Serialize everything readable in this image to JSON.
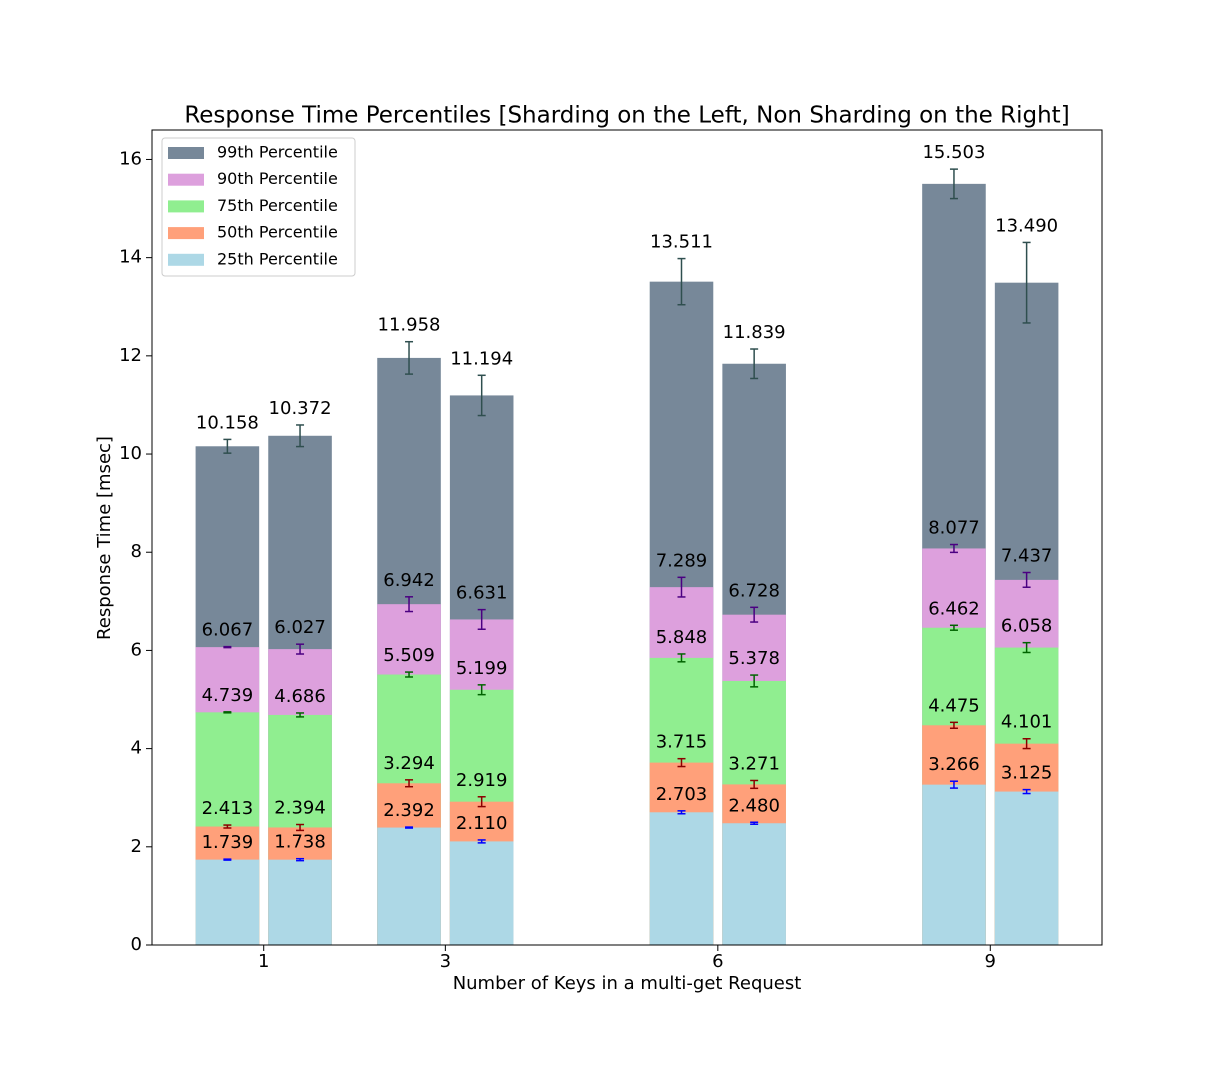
{
  "chart_data": {
    "type": "bar",
    "title": "Response Time Percentiles [Sharding on the Left, Non Sharding on the Right]",
    "x_label": "Number of Keys in a multi-get Request",
    "y_label": "Response Time [msec]",
    "x": [
      1,
      3,
      6,
      9
    ],
    "xticks": [
      1,
      3,
      6,
      9
    ],
    "xlim": [
      -0.23,
      10.23
    ],
    "ylim": [
      0,
      16.6
    ],
    "yticks": [
      0,
      2,
      4,
      6,
      8,
      10,
      12,
      14,
      16
    ],
    "legend": "upper left",
    "series": [
      {
        "name": "99th Percentile",
        "color": "#778899",
        "error_color": "#2f4f4f",
        "sharding": {
          "values": [
            10.158,
            11.958,
            13.511,
            15.503
          ],
          "value_labels": [
            "10.158",
            "11.958",
            "13.511",
            "15.503"
          ],
          "errors": [
            0.14,
            0.33,
            0.47,
            0.3
          ]
        },
        "non_sharding": {
          "values": [
            10.372,
            11.194,
            11.839,
            13.49
          ],
          "value_labels": [
            "10.372",
            "11.194",
            "11.839",
            "13.490"
          ],
          "errors": [
            0.22,
            0.41,
            0.3,
            0.82
          ]
        }
      },
      {
        "name": "90th Percentile",
        "color": "#dda0dd",
        "error_color": "#4b0082",
        "sharding": {
          "values": [
            6.067,
            6.942,
            7.289,
            8.077
          ],
          "value_labels": [
            "6.067",
            "6.942",
            "7.289",
            "8.077"
          ],
          "errors": [
            0.01,
            0.15,
            0.2,
            0.08
          ]
        },
        "non_sharding": {
          "values": [
            6.027,
            6.631,
            6.728,
            7.437
          ],
          "value_labels": [
            "6.027",
            "6.631",
            "6.728",
            "7.437"
          ],
          "errors": [
            0.1,
            0.2,
            0.15,
            0.15
          ]
        }
      },
      {
        "name": "75th Percentile",
        "color": "#90ee90",
        "error_color": "#006400",
        "sharding": {
          "values": [
            4.739,
            5.509,
            5.848,
            6.462
          ],
          "value_labels": [
            "4.739",
            "5.509",
            "5.848",
            "6.462"
          ],
          "errors": [
            0.01,
            0.05,
            0.08,
            0.05
          ]
        },
        "non_sharding": {
          "values": [
            4.686,
            5.199,
            5.378,
            6.058
          ],
          "value_labels": [
            "4.686",
            "5.199",
            "5.378",
            "6.058"
          ],
          "errors": [
            0.04,
            0.1,
            0.12,
            0.1
          ]
        }
      },
      {
        "name": "50th Percentile",
        "color": "#ffa07a",
        "error_color": "#8b0000",
        "sharding": {
          "values": [
            2.413,
            3.294,
            3.715,
            4.475
          ],
          "value_labels": [
            "2.413",
            "3.294",
            "3.715",
            "4.475"
          ],
          "errors": [
            0.03,
            0.07,
            0.08,
            0.06
          ]
        },
        "non_sharding": {
          "values": [
            2.394,
            2.919,
            3.271,
            4.101
          ],
          "value_labels": [
            "2.394",
            "2.919",
            "3.271",
            "4.101"
          ],
          "errors": [
            0.06,
            0.1,
            0.08,
            0.1
          ]
        }
      },
      {
        "name": "25th Percentile",
        "color": "#add8e6",
        "error_color": "#0000ff",
        "sharding": {
          "values": [
            1.739,
            2.392,
            2.703,
            3.266
          ],
          "value_labels": [
            "1.739",
            "2.392",
            "2.703",
            "3.266"
          ],
          "errors": [
            0.01,
            0.01,
            0.03,
            0.07
          ]
        },
        "non_sharding": {
          "values": [
            1.738,
            2.11,
            2.48,
            3.125
          ],
          "value_labels": [
            "1.738",
            "2.110",
            "2.480",
            "3.125"
          ],
          "errors": [
            0.02,
            0.03,
            0.02,
            0.04
          ]
        }
      }
    ]
  }
}
